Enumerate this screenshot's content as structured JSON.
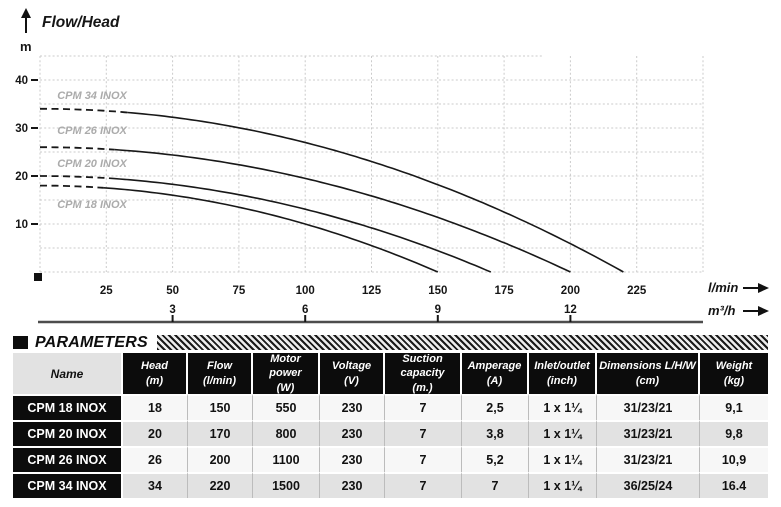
{
  "chart_data": {
    "type": "line",
    "title": "Flow/Head",
    "ylabel": "m",
    "xlabel_primary": "l/min",
    "xlabel_secondary": "m³/h",
    "xlim_lmin": [
      0,
      250
    ],
    "ylim_m": [
      0,
      45
    ],
    "grid": "dotted",
    "legend_position": "inline-labels",
    "y_ticks_m": [
      10,
      20,
      30,
      40
    ],
    "x_ticks_lmin": [
      25,
      50,
      75,
      100,
      125,
      150,
      175,
      200,
      225
    ],
    "x_ticks_m3h": {
      "values": [
        3,
        6,
        9,
        12
      ],
      "lmin_positions": [
        50,
        100,
        150,
        200
      ]
    },
    "series": [
      {
        "name": "CPM 18 INOX",
        "max_head_m": 18,
        "max_flow_lmin": 150,
        "dashed_until_lmin": 24,
        "label_at": {
          "lmin": 6.5,
          "m": 13.3
        },
        "points_lmin_m": [
          [
            0,
            18
          ],
          [
            25,
            17.5
          ],
          [
            50,
            16
          ],
          [
            75,
            13.5
          ],
          [
            100,
            10
          ],
          [
            125,
            5.5
          ],
          [
            150,
            0
          ]
        ]
      },
      {
        "name": "CPM 20 INOX",
        "max_head_m": 20,
        "max_flow_lmin": 170,
        "dashed_until_lmin": 26,
        "label_at": {
          "lmin": 6.5,
          "m": 21.9
        },
        "points_lmin_m": [
          [
            0,
            20
          ],
          [
            25,
            19.6
          ],
          [
            50,
            18.3
          ],
          [
            75,
            16.1
          ],
          [
            100,
            13.1
          ],
          [
            125,
            9.2
          ],
          [
            150,
            4.4
          ],
          [
            170,
            0
          ]
        ]
      },
      {
        "name": "CPM 26 INOX",
        "max_head_m": 26,
        "max_flow_lmin": 200,
        "dashed_until_lmin": 28,
        "label_at": {
          "lmin": 6.5,
          "m": 28.8
        },
        "points_lmin_m": [
          [
            0,
            26
          ],
          [
            25,
            25.6
          ],
          [
            50,
            24.4
          ],
          [
            75,
            22.3
          ],
          [
            100,
            19.5
          ],
          [
            125,
            15.8
          ],
          [
            150,
            11.4
          ],
          [
            175,
            6.1
          ],
          [
            200,
            0
          ]
        ]
      },
      {
        "name": "CPM 34 INOX",
        "max_head_m": 34,
        "max_flow_lmin": 220,
        "dashed_until_lmin": 33,
        "label_at": {
          "lmin": 6.5,
          "m": 36.0
        },
        "points_lmin_m": [
          [
            0,
            34
          ],
          [
            25,
            33.6
          ],
          [
            50,
            32.2
          ],
          [
            75,
            30.1
          ],
          [
            100,
            27
          ],
          [
            125,
            23.1
          ],
          [
            150,
            18.2
          ],
          [
            175,
            12.5
          ],
          [
            200,
            5.9
          ],
          [
            220,
            0
          ]
        ]
      }
    ]
  },
  "parameters": {
    "section_title": "PARAMETERS",
    "columns": [
      {
        "label": "Name",
        "unit": ""
      },
      {
        "label": "Head",
        "unit": "(m)"
      },
      {
        "label": "Flow",
        "unit": "(l/min)"
      },
      {
        "label": "Motor power",
        "unit": "(W)"
      },
      {
        "label": "Voltage",
        "unit": "(V)"
      },
      {
        "label": "Suction capacity",
        "unit": "(m.)"
      },
      {
        "label": "Amperage",
        "unit": "(A)"
      },
      {
        "label": "Inlet/outlet",
        "unit": "(inch)"
      },
      {
        "label": "Dimensions L/H/W",
        "unit": "(cm)"
      },
      {
        "label": "Weight",
        "unit": "(kg)"
      }
    ],
    "rows": [
      {
        "name": "CPM 18 INOX",
        "values": [
          "18",
          "150",
          "550",
          "230",
          "7",
          "2,5",
          "1 x 1¼",
          "31/23/21",
          "9,1"
        ]
      },
      {
        "name": "CPM 20 INOX",
        "values": [
          "20",
          "170",
          "800",
          "230",
          "7",
          "3,8",
          "1 x 1¼",
          "31/23/21",
          "9,8"
        ]
      },
      {
        "name": "CPM 26 INOX",
        "values": [
          "26",
          "200",
          "1100",
          "230",
          "7",
          "5,2",
          "1 x 1¼",
          "31/23/21",
          "10,9"
        ]
      },
      {
        "name": "CPM 34 INOX",
        "values": [
          "34",
          "220",
          "1500",
          "230",
          "7",
          "7",
          "1 x 1¼",
          "36/25/24",
          "16.4"
        ]
      }
    ]
  },
  "colors": {
    "curve": "#181818",
    "grid": "#cbcbcb",
    "curve_label": "#ababab",
    "table_header_bg": "#0c0c0c",
    "row_shade": "#e2e2e2"
  }
}
